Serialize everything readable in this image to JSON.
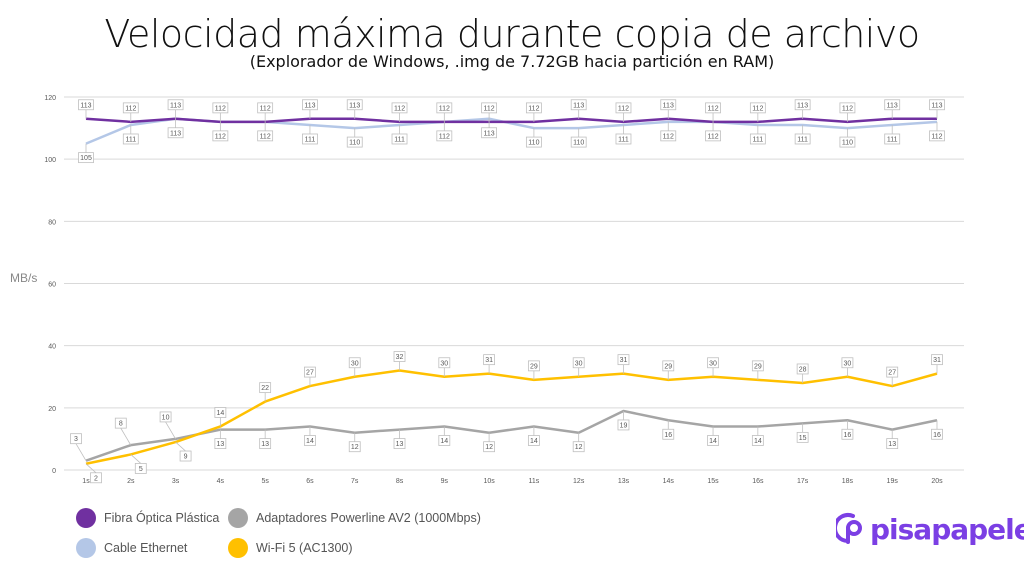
{
  "chart_data": {
    "type": "line",
    "title": "Velocidad máxima durante copia de archivo",
    "subtitle": "(Explorador de Windows, .img de 7.72GB hacia partición en RAM)",
    "ylabel": "MB/s",
    "xlabel": "",
    "ylim": [
      0,
      120
    ],
    "yticks": [
      "0",
      "20",
      "40",
      "60",
      "80",
      "100",
      "120"
    ],
    "categories": [
      "1s",
      "2s",
      "3s",
      "4s",
      "5s",
      "6s",
      "7s",
      "8s",
      "9s",
      "10s",
      "11s",
      "12s",
      "13s",
      "14s",
      "15s",
      "16s",
      "17s",
      "18s",
      "19s",
      "20s"
    ],
    "grid": true,
    "legend_position": "bottom-left",
    "series": [
      {
        "name": "Fibra Óptica Plástica",
        "color": "#7030a0",
        "values": [
          113,
          112,
          113,
          112,
          112,
          113,
          113,
          112,
          112,
          112,
          112,
          113,
          112,
          113,
          112,
          112,
          113,
          112,
          113,
          113
        ]
      },
      {
        "name": "Cable Ethernet",
        "color": "#b4c7e7",
        "values": [
          105,
          111,
          113,
          112,
          112,
          111,
          110,
          111,
          112,
          113,
          110,
          110,
          111,
          112,
          112,
          111,
          111,
          110,
          111,
          112
        ]
      },
      {
        "name": "Adaptadores Powerline AV2 (1000Mbps)",
        "color": "#a5a5a5",
        "values": [
          3,
          8,
          10,
          13,
          13,
          14,
          12,
          13,
          14,
          12,
          14,
          12,
          19,
          16,
          14,
          14,
          15,
          16,
          13,
          16
        ]
      },
      {
        "name": "Wi-Fi 5 (AC1300)",
        "color": "#ffc000",
        "values": [
          2,
          5,
          9,
          14,
          22,
          27,
          30,
          32,
          30,
          31,
          29,
          30,
          31,
          29,
          30,
          29,
          28,
          30,
          27,
          31
        ]
      }
    ]
  },
  "logo": {
    "text": "pisapapeles",
    "color": "#7b3fe4"
  }
}
